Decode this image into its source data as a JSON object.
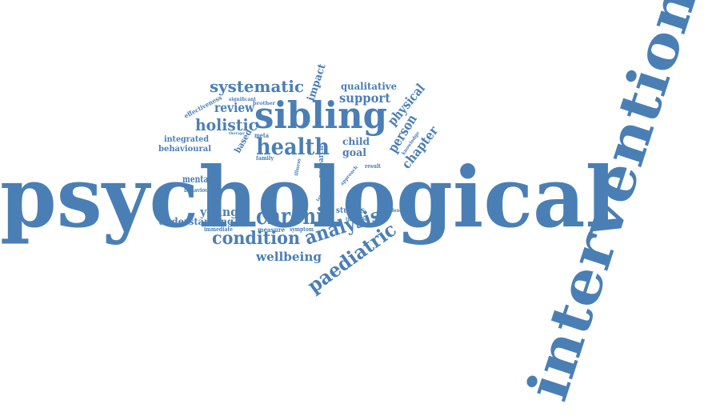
{
  "color": "#4a7fb5",
  "words": {
    "psychological": "psychological",
    "intervention": "intervention",
    "sibling": "sibling",
    "health": "health",
    "chronic": "chronic",
    "condition": "condition",
    "paediatric": "paediatric",
    "analysis": "analysis",
    "systematic": "systematic",
    "holistic": "holistic",
    "review": "review",
    "support": "support",
    "qualitative": "qualitative",
    "impact": "impact",
    "physical": "physical",
    "person": "person",
    "chapter": "chapter",
    "child": "child",
    "goal": "goal",
    "young": "young",
    "understanding": "understanding",
    "wellbeing": "wellbeing",
    "integrated": "integrated",
    "behavioural": "behavioural",
    "mental": "mental",
    "behaviour": "behaviour",
    "based": "based",
    "meta": "meta",
    "family": "family",
    "studies": "studies",
    "measure": "measure",
    "immediate": "immediate",
    "symptom": "symptom",
    "evidence": "evidence",
    "therapies": "therapies",
    "result": "result",
    "approach": "approach",
    "knowledge": "knowledge",
    "research": "research",
    "effectiveness": "effectiveness",
    "significant": "significant",
    "brother": "brother",
    "illness": "illness",
    "therapy": "therapy",
    "families": "families"
  }
}
